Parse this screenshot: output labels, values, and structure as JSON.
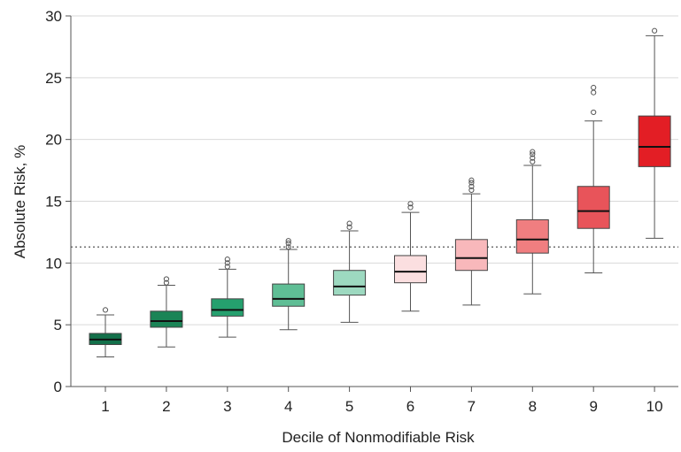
{
  "chart_data": {
    "type": "boxplot",
    "xlabel": "Decile of Nonmodifiable Risk",
    "ylabel": "Absolute Risk, %",
    "ylim": [
      0,
      30
    ],
    "yticks": [
      0,
      5,
      10,
      15,
      20,
      25,
      30
    ],
    "grid": true,
    "reference_line": {
      "y": 11.3,
      "style": "dotted"
    },
    "categories": [
      "1",
      "2",
      "3",
      "4",
      "5",
      "6",
      "7",
      "8",
      "9",
      "10"
    ],
    "boxes": [
      {
        "category": "1",
        "whisker_low": 2.4,
        "q1": 3.4,
        "median": 3.8,
        "q3": 4.3,
        "whisker_high": 5.8,
        "outliers": [
          6.2
        ],
        "color": "#13704a"
      },
      {
        "category": "2",
        "whisker_low": 3.2,
        "q1": 4.8,
        "median": 5.3,
        "q3": 6.1,
        "whisker_high": 8.2,
        "outliers": [
          8.4,
          8.7
        ],
        "color": "#1a8456"
      },
      {
        "category": "3",
        "whisker_low": 4.0,
        "q1": 5.7,
        "median": 6.2,
        "q3": 7.1,
        "whisker_high": 9.5,
        "outliers": [
          9.7,
          10.0,
          10.3
        ],
        "color": "#25a06e"
      },
      {
        "category": "4",
        "whisker_low": 4.6,
        "q1": 6.5,
        "median": 7.1,
        "q3": 8.3,
        "whisker_high": 11.1,
        "outliers": [
          11.3,
          11.6,
          11.8
        ],
        "color": "#5fbe95"
      },
      {
        "category": "5",
        "whisker_low": 5.2,
        "q1": 7.4,
        "median": 8.1,
        "q3": 9.4,
        "whisker_high": 12.6,
        "outliers": [
          12.9,
          13.2
        ],
        "color": "#9dd9c0"
      },
      {
        "category": "6",
        "whisker_low": 6.1,
        "q1": 8.4,
        "median": 9.3,
        "q3": 10.6,
        "whisker_high": 14.1,
        "outliers": [
          14.5,
          14.8
        ],
        "color": "#fbdfe0"
      },
      {
        "category": "7",
        "whisker_low": 6.6,
        "q1": 9.4,
        "median": 10.4,
        "q3": 11.9,
        "whisker_high": 15.6,
        "outliers": [
          15.9,
          16.2,
          16.5,
          16.7
        ],
        "color": "#f8b8bb"
      },
      {
        "category": "8",
        "whisker_low": 7.5,
        "q1": 10.8,
        "median": 11.9,
        "q3": 13.5,
        "whisker_high": 17.9,
        "outliers": [
          18.2,
          18.5,
          18.8,
          19.0
        ],
        "color": "#f07e80"
      },
      {
        "category": "9",
        "whisker_low": 9.2,
        "q1": 12.8,
        "median": 14.2,
        "q3": 16.2,
        "whisker_high": 21.5,
        "outliers": [
          22.2,
          23.8,
          24.2
        ],
        "color": "#e8545a"
      },
      {
        "category": "10",
        "whisker_low": 12.0,
        "q1": 17.8,
        "median": 19.4,
        "q3": 21.9,
        "whisker_high": 28.4,
        "outliers": [
          28.8
        ],
        "color": "#e31e25"
      }
    ]
  }
}
